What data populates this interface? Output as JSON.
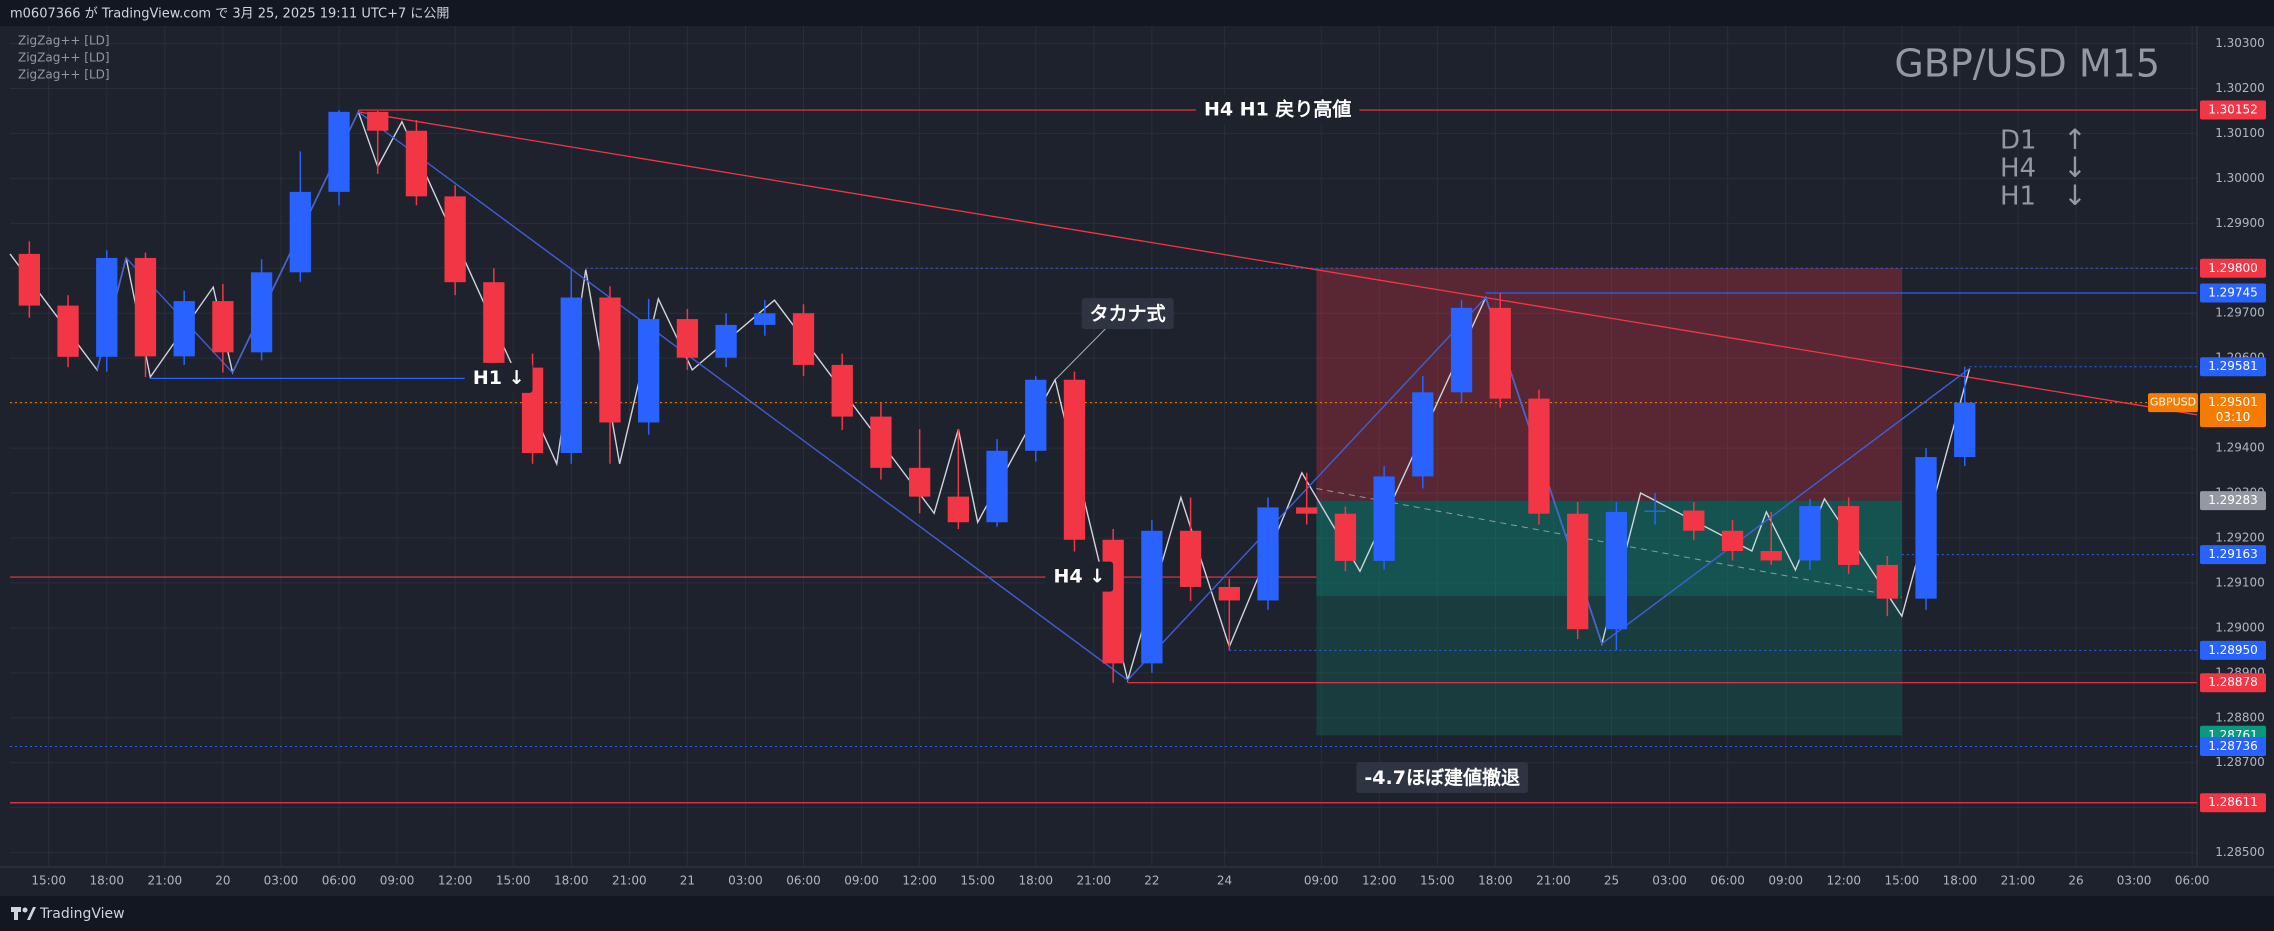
{
  "header": {
    "publish_text": "m0607366 が TradingView.com で 3月 25, 2025 19:11 UTC+7 に公開"
  },
  "footer": {
    "brand": "TradingView"
  },
  "chart_data": {
    "type": "candlestick",
    "symbol_title": "GBP/USD M15",
    "indicators": [
      "ZigZag++ [LD]",
      "ZigZag++ [LD]",
      "ZigZag++ [LD]"
    ],
    "trend_labels": [
      {
        "timeframe": "D1",
        "arrow": "↑"
      },
      {
        "timeframe": "H4",
        "arrow": "↓"
      },
      {
        "timeframe": "H1",
        "arrow": "↓"
      }
    ],
    "up_color": "#2962ff",
    "down_color": "#f23645",
    "x": [
      4,
      12,
      20,
      28,
      36,
      44,
      52,
      60,
      68,
      76,
      84,
      92,
      100,
      108,
      116,
      124,
      132,
      140,
      148,
      156,
      164,
      172,
      180,
      188,
      196,
      204,
      212,
      220,
      228,
      236,
      244,
      252,
      260,
      268,
      276,
      284,
      292,
      300,
      308,
      316,
      324,
      332,
      340,
      348,
      356,
      364,
      372,
      380,
      388,
      396,
      404
    ],
    "open": [
      1.29832,
      1.29717,
      1.29603,
      1.29823,
      1.29604,
      1.29727,
      1.29613,
      1.29791,
      1.2997,
      1.30148,
      1.30106,
      1.2996,
      1.29769,
      1.29579,
      1.29389,
      1.29735,
      1.29457,
      1.29687,
      1.29601,
      1.29674,
      1.297,
      1.29585,
      1.2947,
      1.29356,
      1.29292,
      1.29235,
      1.29394,
      1.29552,
      1.29196,
      1.28921,
      1.29216,
      1.29091,
      1.29061,
      1.29268,
      1.29254,
      1.29149,
      1.29337,
      1.29524,
      1.29712,
      1.2951,
      1.29254,
      1.28997,
      1.29258,
      1.29261,
      1.29216,
      1.29171,
      1.2915,
      1.29271,
      1.2914,
      1.29065,
      1.2938
    ],
    "high": [
      1.2986,
      1.2974,
      1.2984,
      1.29835,
      1.2975,
      1.29765,
      1.2982,
      1.3006,
      1.30152,
      1.3015,
      1.3013,
      1.29985,
      1.298,
      1.2961,
      1.29797,
      1.2976,
      1.29732,
      1.2971,
      1.297,
      1.29729,
      1.2972,
      1.2961,
      1.295,
      1.29442,
      1.29442,
      1.2942,
      1.2956,
      1.2957,
      1.2922,
      1.2924,
      1.2929,
      1.2911,
      1.2929,
      1.29345,
      1.2927,
      1.2936,
      1.2956,
      1.2973,
      1.29745,
      1.2953,
      1.2928,
      1.2928,
      1.293,
      1.2928,
      1.2924,
      1.29258,
      1.29287,
      1.2929,
      1.2916,
      1.294,
      1.29581
    ],
    "low": [
      1.2969,
      1.2958,
      1.2957,
      1.29558,
      1.29585,
      1.29568,
      1.29595,
      1.2977,
      1.2994,
      1.3001,
      1.2994,
      1.2974,
      1.2955,
      1.29365,
      1.29365,
      1.29365,
      1.2943,
      1.29574,
      1.2958,
      1.2965,
      1.2956,
      1.2944,
      1.2933,
      1.29255,
      1.2922,
      1.29225,
      1.2937,
      1.2917,
      1.28878,
      1.289,
      1.2906,
      1.2895,
      1.2904,
      1.2923,
      1.29126,
      1.2913,
      1.2931,
      1.295,
      1.2949,
      1.2923,
      1.28975,
      1.2895,
      1.2923,
      1.29195,
      1.2915,
      1.2914,
      1.29129,
      1.2912,
      1.29026,
      1.2904,
      1.2936
    ],
    "close": [
      1.29717,
      1.29603,
      1.29823,
      1.29604,
      1.29727,
      1.29613,
      1.29791,
      1.2997,
      1.30148,
      1.30106,
      1.2996,
      1.29769,
      1.29579,
      1.29389,
      1.29735,
      1.29457,
      1.29687,
      1.29601,
      1.29674,
      1.297,
      1.29585,
      1.2947,
      1.29356,
      1.29292,
      1.29235,
      1.29394,
      1.29552,
      1.29196,
      1.28921,
      1.29216,
      1.29091,
      1.29061,
      1.29268,
      1.29254,
      1.29149,
      1.29337,
      1.29524,
      1.29712,
      1.2951,
      1.29254,
      1.28997,
      1.29258,
      1.29261,
      1.29216,
      1.29171,
      1.2915,
      1.29271,
      1.2914,
      1.29065,
      1.2938,
      1.29501
    ],
    "xlim": [
      0,
      452
    ],
    "xticks": [
      {
        "value": 8,
        "label": "15:00"
      },
      {
        "value": 20,
        "label": "18:00"
      },
      {
        "value": 32,
        "label": "21:00"
      },
      {
        "value": 44,
        "label": "20"
      },
      {
        "value": 56,
        "label": "03:00"
      },
      {
        "value": 68,
        "label": "06:00"
      },
      {
        "value": 80,
        "label": "09:00"
      },
      {
        "value": 92,
        "label": "12:00"
      },
      {
        "value": 104,
        "label": "15:00"
      },
      {
        "value": 116,
        "label": "18:00"
      },
      {
        "value": 128,
        "label": "21:00"
      },
      {
        "value": 140,
        "label": "21"
      },
      {
        "value": 152,
        "label": "03:00"
      },
      {
        "value": 164,
        "label": "06:00"
      },
      {
        "value": 176,
        "label": "09:00"
      },
      {
        "value": 188,
        "label": "12:00"
      },
      {
        "value": 200,
        "label": "15:00"
      },
      {
        "value": 212,
        "label": "18:00"
      },
      {
        "value": 224,
        "label": "21:00"
      },
      {
        "value": 236,
        "label": "22"
      },
      {
        "value": 251,
        "label": "24"
      },
      {
        "value": 271,
        "label": "09:00"
      },
      {
        "value": 283,
        "label": "12:00"
      },
      {
        "value": 295,
        "label": "15:00"
      },
      {
        "value": 307,
        "label": "18:00"
      },
      {
        "value": 319,
        "label": "21:00"
      },
      {
        "value": 331,
        "label": "25"
      },
      {
        "value": 343,
        "label": "03:00"
      },
      {
        "value": 355,
        "label": "06:00"
      },
      {
        "value": 367,
        "label": "09:00"
      },
      {
        "value": 379,
        "label": "12:00"
      },
      {
        "value": 391,
        "label": "15:00"
      },
      {
        "value": 403,
        "label": "18:00"
      },
      {
        "value": 415,
        "label": "21:00"
      },
      {
        "value": 427,
        "label": "26"
      },
      {
        "value": 439,
        "label": "03:00"
      },
      {
        "value": 451,
        "label": "06:00"
      }
    ],
    "ylim": [
      1.28468,
      1.30339
    ],
    "yticks": [
      {
        "value": 1.303,
        "label": "1.30300"
      },
      {
        "value": 1.302,
        "label": "1.30200"
      },
      {
        "value": 1.301,
        "label": "1.30100"
      },
      {
        "value": 1.3,
        "label": "1.30000"
      },
      {
        "value": 1.299,
        "label": "1.29900"
      },
      {
        "value": 1.298,
        "label": "1.29800"
      },
      {
        "value": 1.297,
        "label": "1.29700"
      },
      {
        "value": 1.296,
        "label": "1.29600"
      },
      {
        "value": 1.295,
        "label": "1.29500"
      },
      {
        "value": 1.294,
        "label": "1.29400"
      },
      {
        "value": 1.293,
        "label": "1.29300"
      },
      {
        "value": 1.292,
        "label": "1.29200"
      },
      {
        "value": 1.291,
        "label": "1.29100"
      },
      {
        "value": 1.29,
        "label": "1.29000"
      },
      {
        "value": 1.289,
        "label": "1.28900"
      },
      {
        "value": 1.288,
        "label": "1.28800"
      },
      {
        "value": 1.287,
        "label": "1.28700"
      },
      {
        "value": 1.286,
        "label": "1.28600"
      },
      {
        "value": 1.285,
        "label": "1.28500"
      }
    ],
    "grid": true,
    "zigzags": [
      {
        "color": "#d1d4dc",
        "x": [
          0,
          18,
          24,
          29,
          42,
          46,
          72,
          76,
          81,
          113,
          119,
          126,
          134,
          141,
          158,
          191,
          196,
          200,
          216,
          231,
          242,
          252,
          267,
          279,
          305,
          329,
          337,
          360,
          363,
          369,
          375,
          391,
          405
        ],
        "y": [
          1.29832,
          1.29574,
          1.29823,
          1.29558,
          1.29758,
          1.29568,
          1.30148,
          1.30026,
          1.30126,
          1.29365,
          1.29797,
          1.29365,
          1.29732,
          1.29574,
          1.29729,
          1.29255,
          1.29442,
          1.29235,
          1.29552,
          1.28884,
          1.2929,
          1.28958,
          1.29345,
          1.29126,
          1.29735,
          1.28965,
          1.293,
          1.29171,
          1.29258,
          1.29129,
          1.29287,
          1.29026,
          1.29577
        ]
      },
      {
        "color": "#3f5fd6",
        "x": [
          18,
          24,
          46,
          72,
          231,
          305,
          329,
          405
        ],
        "y": [
          1.29574,
          1.29823,
          1.29568,
          1.30148,
          1.28884,
          1.29735,
          1.28965,
          1.29577
        ]
      }
    ],
    "trendlines": [
      {
        "color": "#f23645",
        "x": [
          72,
          452
        ],
        "y": [
          1.30148,
          1.29474
        ]
      }
    ],
    "position": {
      "x_start": 270,
      "x_end": 391,
      "stop": 1.298,
      "entry": 1.29283,
      "mid_level": 1.29071,
      "target": 1.28761,
      "trade_line": {
        "x": [
          270,
          391
        ],
        "y": [
          1.2931,
          1.29068
        ]
      }
    },
    "levels": [
      {
        "price": 1.30152,
        "color": "#f23645",
        "line_style": "solid",
        "from": 72
      },
      {
        "price": 1.298,
        "price_label": "1.29800",
        "color": "#f23645",
        "line_color": "#3f5fd6",
        "line_style": "dotted",
        "from": 119
      },
      {
        "price": 1.29745,
        "color": "#2962ff",
        "line_style": "solid",
        "from": 305
      },
      {
        "price": 1.29581,
        "color": "#2962ff",
        "line_style": "dotted",
        "from": 405
      },
      {
        "price": 1.29501,
        "color": "#f57c00",
        "line_style": "dotted",
        "from": 0,
        "symbol": "GBPUSD",
        "countdown": "03:10"
      },
      {
        "price": 1.29283,
        "color": "#9598a1"
      },
      {
        "price": 1.29163,
        "color": "#2962ff",
        "line_style": "dotted",
        "from": 391
      },
      {
        "price": 1.2895,
        "price_label": "1.28950",
        "color": "#2962ff",
        "line_style": "dotted",
        "from": 252
      },
      {
        "price": 1.28878,
        "color": "#f23645",
        "line_style": "solid",
        "from": 231
      },
      {
        "price": 1.28761,
        "color": "#089981"
      },
      {
        "price": 1.28736,
        "color": "#2962ff",
        "line_style": "dotted",
        "from": 0
      },
      {
        "price": 1.28611,
        "color": "#f23645",
        "line_style": "solid",
        "from": 0
      }
    ],
    "plain_lines": [
      {
        "price": 1.29113,
        "color": "#f23645",
        "from": 0,
        "to": 270
      },
      {
        "price": 1.29555,
        "color": "#2962ff",
        "from": 29,
        "to": 94
      }
    ],
    "annotations": [
      {
        "text": "H4 H1 戻り高値",
        "x": 262,
        "y": 1.30152
      },
      {
        "text": "H1 ↓",
        "x": 101,
        "y": 1.29555
      },
      {
        "text": "タカナ式",
        "x": 231,
        "y": 1.29697,
        "pointer": [
          216,
          1.29552
        ],
        "boxed": true
      },
      {
        "text": "H4 ↓",
        "x": 221,
        "y": 1.29113
      },
      {
        "text": "-4.7ほぼ建値撤退",
        "x": 296,
        "y": 1.28665,
        "boxed": true
      }
    ]
  }
}
